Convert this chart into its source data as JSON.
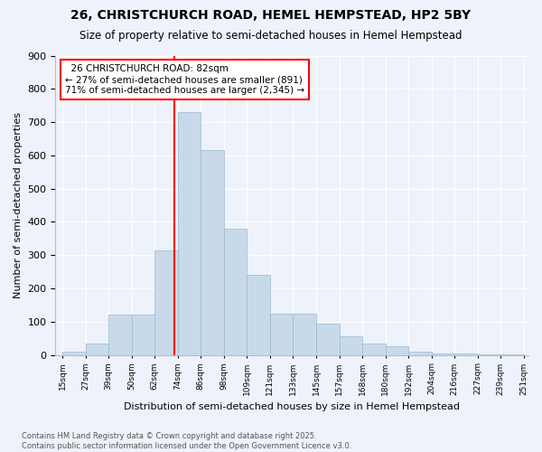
{
  "title1": "26, CHRISTCHURCH ROAD, HEMEL HEMPSTEAD, HP2 5BY",
  "title2": "Size of property relative to semi-detached houses in Hemel Hempstead",
  "xlabel": "Distribution of semi-detached houses by size in Hemel Hempstead",
  "ylabel": "Number of semi-detached properties",
  "footnote": "Contains HM Land Registry data © Crown copyright and database right 2025.\nContains public sector information licensed under the Open Government Licence v3.0.",
  "bar_labels": [
    "15sqm",
    "27sqm",
    "39sqm",
    "50sqm",
    "62sqm",
    "74sqm",
    "86sqm",
    "98sqm",
    "109sqm",
    "121sqm",
    "133sqm",
    "145sqm",
    "157sqm",
    "168sqm",
    "180sqm",
    "192sqm",
    "204sqm",
    "216sqm",
    "227sqm",
    "239sqm",
    "251sqm"
  ],
  "bar_values": [
    10,
    35,
    120,
    120,
    315,
    730,
    615,
    380,
    240,
    125,
    125,
    95,
    55,
    35,
    25,
    10,
    5,
    5,
    3,
    3
  ],
  "property_label": "26 CHRISTCHURCH ROAD: 82sqm",
  "pct_smaller": "27% of semi-detached houses are smaller (891)",
  "pct_larger": "71% of semi-detached houses are larger (2,345)",
  "vline_bar_index": 5,
  "bar_color": "#c8daea",
  "bar_edge_color": "#9ab8d0",
  "vline_color": "red",
  "background_color": "#eef2fa",
  "ylim": [
    0,
    900
  ],
  "yticks": [
    0,
    100,
    200,
    300,
    400,
    500,
    600,
    700,
    800,
    900
  ]
}
